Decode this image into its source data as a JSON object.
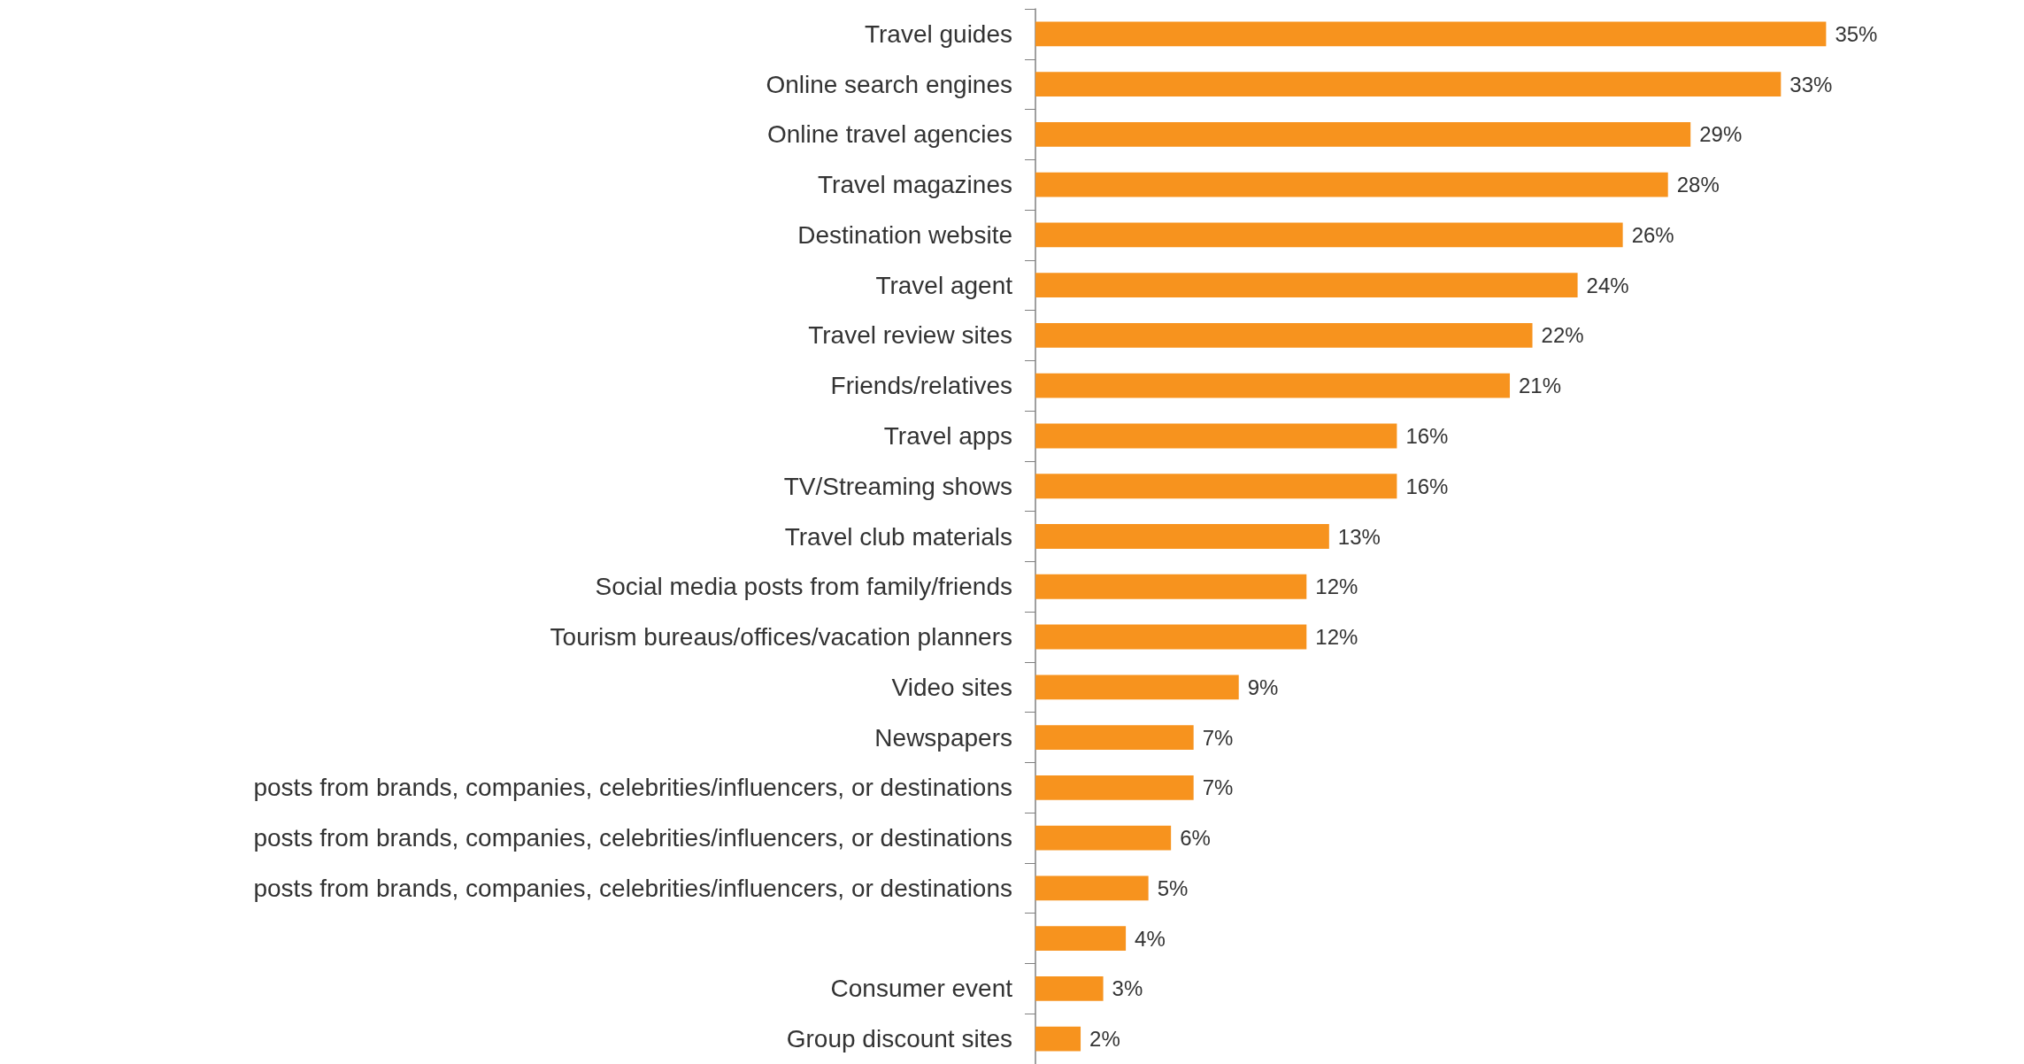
{
  "chart_data": {
    "type": "bar",
    "orientation": "horizontal",
    "categories": [
      "Travel guides",
      "Online search engines",
      "Online travel agencies",
      "Travel magazines",
      "Destination website",
      "Travel agent",
      "Travel review sites",
      "Friends/relatives",
      "Travel apps",
      "TV/Streaming shows",
      "Travel club materials",
      "Social media posts from family/friends",
      "Tourism bureaus/offices/vacation planners",
      "Video sites",
      "Newspapers",
      "posts from brands, companies, celebrities/influencers, or destinations",
      "posts from brands, companies, celebrities/influencers, or destinations",
      "posts from brands, companies, celebrities/influencers, or destinations",
      null,
      "Consumer event",
      "Group discount sites"
    ],
    "values": [
      35,
      33,
      29,
      28,
      26,
      24,
      22,
      21,
      16,
      16,
      13,
      12,
      12,
      9,
      7,
      7,
      6,
      5,
      4,
      3,
      2
    ],
    "value_labels": [
      "35%",
      "33%",
      "29%",
      "28%",
      "26%",
      "24%",
      "22%",
      "21%",
      "16%",
      "16%",
      "13%",
      "12%",
      "12%",
      "9%",
      "7%",
      "7%",
      "6%",
      "5%",
      "4%",
      "3%",
      "2%"
    ],
    "color": "#f7931e",
    "tick_labels": "y"
  }
}
